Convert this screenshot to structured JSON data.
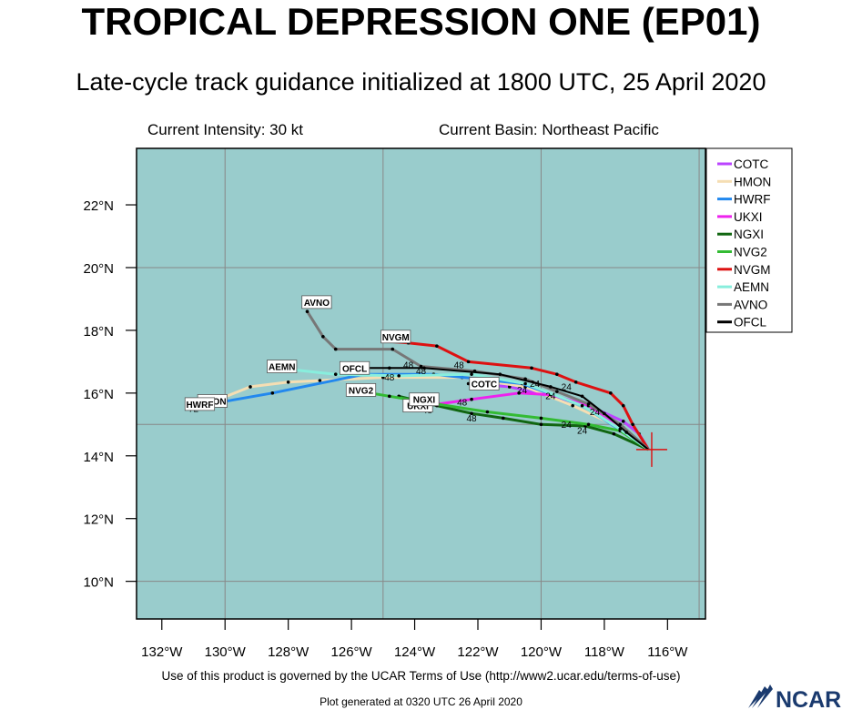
{
  "header": {
    "title": "TROPICAL DEPRESSION ONE (EP01)",
    "subtitle": "Late-cycle track guidance initialized at 1800 UTC, 25 April 2020",
    "current_intensity": "Current Intensity: 30 kt",
    "current_basin": "Current Basin: Northeast Pacific"
  },
  "axes": {
    "lon_ticks": [
      "132°W",
      "130°W",
      "128°W",
      "126°W",
      "124°W",
      "122°W",
      "120°W",
      "118°W",
      "116°W"
    ],
    "lat_ticks": [
      "10°N",
      "12°N",
      "14°N",
      "16°N",
      "18°N",
      "20°N",
      "22°N"
    ],
    "lon_range": [
      -132.8,
      -114.8
    ],
    "lat_range": [
      8.8,
      23.8
    ]
  },
  "storm_position": {
    "lon": -116.5,
    "lat": 14.2
  },
  "models": [
    {
      "name": "COTC",
      "color": "#bb44ff",
      "label_pos": {
        "lon": -121.8,
        "lat": 16.3
      },
      "track": [
        [
          -116.6,
          14.2
        ],
        [
          -116.9,
          14.7
        ],
        [
          -117.4,
          15.1
        ],
        [
          -118.5,
          15.6
        ],
        [
          -119.7,
          15.9
        ],
        [
          -121,
          16.2
        ],
        [
          -122.3,
          16.3
        ]
      ],
      "hour_labels": []
    },
    {
      "name": "HMON",
      "color": "#f5deb3",
      "label_pos": {
        "lon": -130.4,
        "lat": 15.75
      },
      "track": [
        [
          -116.6,
          14.2
        ],
        [
          -117.5,
          14.9
        ],
        [
          -119,
          15.6
        ],
        [
          -120.5,
          16.2
        ],
        [
          -122.5,
          16.5
        ],
        [
          -125,
          16.5
        ],
        [
          -127,
          16.4
        ],
        [
          -128,
          16.35
        ],
        [
          -129.2,
          16.2
        ],
        [
          -130.2,
          15.8
        ]
      ],
      "hour_labels": [
        {
          "text": "72",
          "lon": -131.0,
          "lat": 15.4
        }
      ]
    },
    {
      "name": "HWRF",
      "color": "#2288ee",
      "label_pos": {
        "lon": -130.8,
        "lat": 15.65
      },
      "track": [
        [
          -116.6,
          14.2
        ],
        [
          -117.3,
          14.7
        ],
        [
          -118.7,
          15.6
        ],
        [
          -120.6,
          16.3
        ],
        [
          -123.4,
          16.6
        ],
        [
          -125.6,
          16.6
        ],
        [
          -128.5,
          16.0
        ],
        [
          -130.2,
          15.7
        ]
      ],
      "hour_labels": []
    },
    {
      "name": "UKXI",
      "color": "#ee22ee",
      "label_pos": {
        "lon": -123.9,
        "lat": 15.6
      },
      "track": [
        [
          -116.6,
          14.2
        ],
        [
          -117.4,
          14.9
        ],
        [
          -118.5,
          15.6
        ],
        [
          -119.7,
          15.95
        ],
        [
          -120.7,
          16.0
        ],
        [
          -122.2,
          15.8
        ],
        [
          -123.6,
          15.6
        ]
      ],
      "hour_labels": [
        {
          "text": "24",
          "lon": -119.7,
          "lat": 15.8
        },
        {
          "text": "48",
          "lon": -122.5,
          "lat": 15.6
        },
        {
          "text": "48",
          "lon": -123.6,
          "lat": 15.35
        }
      ]
    },
    {
      "name": "NGXI",
      "color": "#116611",
      "label_pos": {
        "lon": -123.7,
        "lat": 15.8
      },
      "track": [
        [
          -116.6,
          14.2
        ],
        [
          -117.7,
          14.7
        ],
        [
          -118.6,
          14.95
        ],
        [
          -120,
          15.0
        ],
        [
          -121.2,
          15.2
        ],
        [
          -122.2,
          15.35
        ],
        [
          -123.3,
          15.6
        ],
        [
          -124.5,
          15.9
        ]
      ],
      "hour_labels": [
        {
          "text": "24",
          "lon": -118.7,
          "lat": 14.7
        },
        {
          "text": "48",
          "lon": -122.2,
          "lat": 15.1
        }
      ]
    },
    {
      "name": "NVG2",
      "color": "#33bb33",
      "label_pos": {
        "lon": -125.7,
        "lat": 16.1
      },
      "track": [
        [
          -116.6,
          14.2
        ],
        [
          -117.5,
          14.8
        ],
        [
          -118.5,
          15.0
        ],
        [
          -120,
          15.2
        ],
        [
          -121.7,
          15.4
        ],
        [
          -123.6,
          15.7
        ],
        [
          -124.8,
          15.9
        ],
        [
          -126,
          16.1
        ]
      ],
      "hour_labels": [
        {
          "text": "24",
          "lon": -119.2,
          "lat": 14.9
        }
      ]
    },
    {
      "name": "NVGM",
      "color": "#dd1111",
      "label_pos": {
        "lon": -124.6,
        "lat": 17.8
      },
      "track": [
        [
          -116.6,
          14.2
        ],
        [
          -117.1,
          15.0
        ],
        [
          -117.4,
          15.6
        ],
        [
          -117.8,
          16.0
        ],
        [
          -118.9,
          16.35
        ],
        [
          -119.5,
          16.6
        ],
        [
          -120.3,
          16.8
        ],
        [
          -122.3,
          17.0
        ],
        [
          -123.3,
          17.5
        ],
        [
          -124.2,
          17.6
        ],
        [
          -124.9,
          17.65
        ]
      ],
      "hour_labels": [
        {
          "text": "24",
          "lon": -119.2,
          "lat": 16.1
        },
        {
          "text": "48",
          "lon": -122.6,
          "lat": 16.8
        }
      ]
    },
    {
      "name": "AEMN",
      "color": "#88eedd",
      "label_pos": {
        "lon": -128.2,
        "lat": 16.85
      },
      "track": [
        [
          -116.6,
          14.2
        ],
        [
          -117.5,
          14.85
        ],
        [
          -118.7,
          15.6
        ],
        [
          -120.5,
          16.3
        ],
        [
          -122.2,
          16.6
        ],
        [
          -124.5,
          16.55
        ],
        [
          -126.5,
          16.6
        ],
        [
          -127.9,
          16.75
        ]
      ],
      "hour_labels": [
        {
          "text": "24",
          "lon": -118.3,
          "lat": 15.3
        },
        {
          "text": "48",
          "lon": -124.8,
          "lat": 16.4
        }
      ]
    },
    {
      "name": "AVNO",
      "color": "#777777",
      "label_pos": {
        "lon": -127.1,
        "lat": 18.9
      },
      "track": [
        [
          -116.6,
          14.2
        ],
        [
          -117.5,
          15.0
        ],
        [
          -118.5,
          15.65
        ],
        [
          -119.5,
          16.05
        ],
        [
          -120.5,
          16.45
        ],
        [
          -122.1,
          16.7
        ],
        [
          -123.8,
          16.85
        ],
        [
          -124.7,
          17.4
        ],
        [
          -126.5,
          17.4
        ],
        [
          -126.9,
          17.8
        ],
        [
          -127.4,
          18.6
        ]
      ],
      "hour_labels": [
        {
          "text": "24",
          "lon": -120.2,
          "lat": 16.2
        },
        {
          "text": "48",
          "lon": -123.8,
          "lat": 16.6
        }
      ]
    },
    {
      "name": "OFCL",
      "color": "#000000",
      "label_pos": {
        "lon": -125.9,
        "lat": 16.8
      },
      "track": [
        [
          -116.6,
          14.2
        ],
        [
          -117.3,
          14.75
        ],
        [
          -118.0,
          15.35
        ],
        [
          -118.7,
          15.9
        ],
        [
          -119.7,
          16.2
        ],
        [
          -121.3,
          16.6
        ],
        [
          -123.7,
          16.8
        ],
        [
          -124.8,
          16.8
        ],
        [
          -126.1,
          16.8
        ]
      ],
      "hour_labels": [
        {
          "text": "24",
          "lon": -120.6,
          "lat": 16.0
        },
        {
          "text": "48",
          "lon": -124.2,
          "lat": 16.8
        }
      ]
    }
  ],
  "footer": {
    "terms": "Use of this product is governed by the UCAR Terms of Use (http://www2.ucar.edu/terms-of-use)",
    "generated": "Plot generated at 0320 UTC   26 April 2020",
    "logo": "NCAR"
  },
  "colors": {
    "ocean": "#99cccc",
    "grid": "#888888",
    "frame": "#000000"
  }
}
